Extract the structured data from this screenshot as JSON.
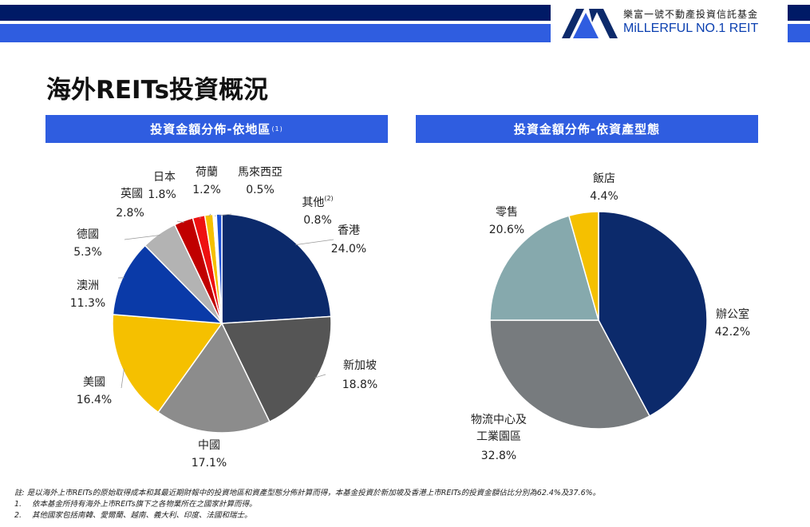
{
  "header": {
    "company_cn": "樂富一號不動產投資信託基金",
    "company_en": "MiLLERFUL NO.1 REIT",
    "logo_icon": "millerful-logo-icon",
    "colors": {
      "navy": "#001a66",
      "blue": "#2f5de0"
    }
  },
  "page_title": "海外REITs投資概況",
  "panels": {
    "left_header": "投資金額分佈-依地區",
    "left_header_sup": "(1)",
    "right_header": "投資金額分佈-依資產型態"
  },
  "chart_data": [
    {
      "type": "pie",
      "title": "投資金額分佈-依地區",
      "slices": [
        {
          "label": "香港",
          "value": 24.0,
          "value_text": "24.0%",
          "color": "#0c2a6b"
        },
        {
          "label": "新加坡",
          "value": 18.8,
          "value_text": "18.8%",
          "color": "#555555"
        },
        {
          "label": "中國",
          "value": 17.1,
          "value_text": "17.1%",
          "color": "#8c8c8c"
        },
        {
          "label": "美國",
          "value": 16.4,
          "value_text": "16.4%",
          "color": "#f5c000"
        },
        {
          "label": "澳洲",
          "value": 11.3,
          "value_text": "11.3%",
          "color": "#0a3aa8"
        },
        {
          "label": "德國",
          "value": 5.3,
          "value_text": "5.3%",
          "color": "#b3b3b3"
        },
        {
          "label": "英國",
          "value": 2.8,
          "value_text": "2.8%",
          "color": "#c00000"
        },
        {
          "label": "日本",
          "value": 1.8,
          "value_text": "1.8%",
          "color": "#ee1111"
        },
        {
          "label": "荷蘭",
          "value": 1.2,
          "value_text": "1.2%",
          "color": "#f5c000"
        },
        {
          "label": "馬來西亞",
          "value": 0.5,
          "value_text": "0.5%",
          "color": "#ffffff"
        },
        {
          "label": "其他",
          "label_sup": "(2)",
          "value": 0.8,
          "value_text": "0.8%",
          "color": "#1a4fd6"
        }
      ]
    },
    {
      "type": "pie",
      "title": "投資金額分佈-依資產型態",
      "slices": [
        {
          "label": "辦公室",
          "value": 42.2,
          "value_text": "42.2%",
          "color": "#0c2a6b"
        },
        {
          "label": "物流中心及工業園區",
          "label_line1": "物流中心及",
          "label_line2": "工業園區",
          "value": 32.8,
          "value_text": "32.8%",
          "color": "#777b7e"
        },
        {
          "label": "零售",
          "value": 20.6,
          "value_text": "20.6%",
          "color": "#86a9ad"
        },
        {
          "label": "飯店",
          "value": 4.4,
          "value_text": "4.4%",
          "color": "#f5c000"
        }
      ]
    }
  ],
  "notes": {
    "main": "註: 是以海外上市REITs的原始取得成本和其最近期財報中的投資地區和資產型態分佈計算而得，本基金投資於新加坡及香港上市REITs的投資金額佔比分別為62.4%及37.6%。",
    "n1_num": "1.",
    "n1": "依本基金所持有海外上市REITs旗下之各物業所在之國家計算而得。",
    "n2_num": "2.",
    "n2": "其他國家包括南韓、愛爾蘭、越南、義大利、印度、法國和瑞士。"
  }
}
